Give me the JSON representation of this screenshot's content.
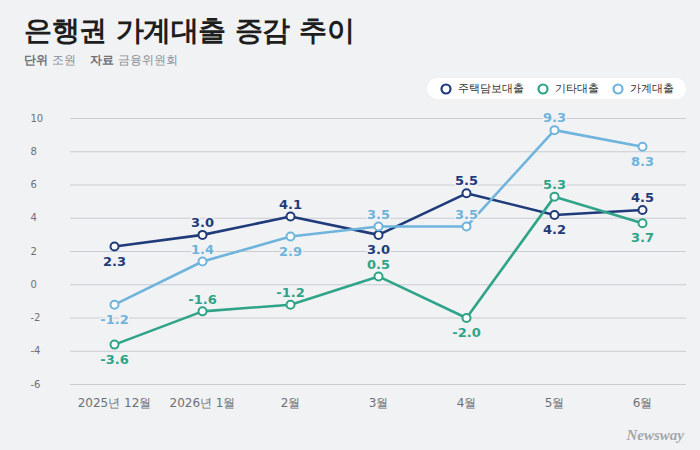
{
  "chart_data": {
    "type": "line",
    "title": "은행권 가계대출 증감 추이",
    "subtitle": [
      "단위 조원",
      "자료 금융위원회"
    ],
    "caption": "Newsway",
    "categories": [
      "2025년 12월",
      "2026년 1월",
      "2월",
      "3월",
      "4월",
      "5월",
      "6월"
    ],
    "series": [
      {
        "name": "주택담보대출",
        "color": "#1f3b7a",
        "marker": "circle",
        "values": [
          2.3,
          3.0,
          4.1,
          3.0,
          5.5,
          4.2,
          4.5
        ],
        "value_labels": [
          "2.3",
          "3.0",
          "4.1",
          "3.0",
          "5.5",
          "4.2",
          "4.5"
        ]
      },
      {
        "name": "기타대출",
        "color": "#2fa488",
        "marker": "circle",
        "values": [
          -3.6,
          -1.6,
          -1.2,
          0.5,
          -2.0,
          5.3,
          3.7
        ],
        "value_labels": [
          "-3.6",
          "-1.6",
          "-1.2",
          "0.5",
          "-2.0",
          "5.3",
          "3.7"
        ]
      },
      {
        "name": "가계대출",
        "color": "#6fb4dd",
        "marker": "circle",
        "values": [
          -1.2,
          1.4,
          2.9,
          3.5,
          3.5,
          9.3,
          8.3
        ],
        "value_labels": [
          "-1.2",
          "1.4",
          "2.9",
          "3.5",
          "3.5",
          "9.3",
          "8.3"
        ]
      }
    ],
    "ylim": [
      -6,
      10
    ],
    "yticks": [
      -6,
      -4,
      -2,
      0,
      2,
      4,
      6,
      8,
      10
    ],
    "grid": true,
    "legend": "top-right",
    "data_labels": true
  }
}
